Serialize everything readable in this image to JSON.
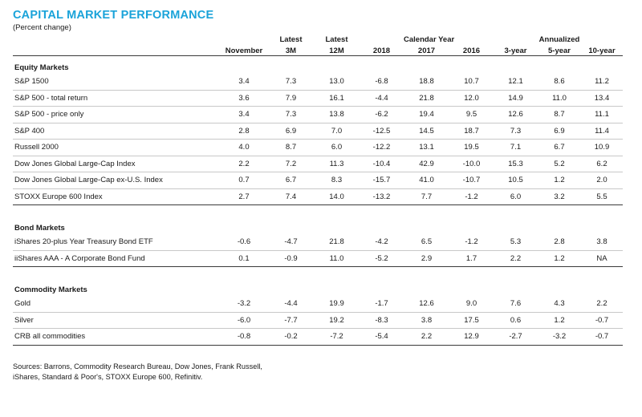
{
  "title": "CAPITAL MARKET PERFORMANCE",
  "subtitle": "(Percent change)",
  "header": {
    "top": [
      "",
      "",
      "Latest",
      "Latest",
      "",
      "Calendar Year",
      "",
      "",
      "Annualized",
      ""
    ],
    "bottom": [
      "November",
      "3M",
      "12M",
      "2018",
      "2017",
      "2016",
      "3-year",
      "5-year",
      "10-year"
    ]
  },
  "sections": [
    {
      "name": "Equity Markets",
      "rows": [
        {
          "label": "S&P 1500",
          "values": [
            "3.4",
            "7.3",
            "13.0",
            "-6.8",
            "18.8",
            "10.7",
            "12.1",
            "8.6",
            "11.2"
          ]
        },
        {
          "label": "S&P 500  - total return",
          "values": [
            "3.6",
            "7.9",
            "16.1",
            "-4.4",
            "21.8",
            "12.0",
            "14.9",
            "11.0",
            "13.4"
          ]
        },
        {
          "label": "S&P 500  - price only",
          "values": [
            "3.4",
            "7.3",
            "13.8",
            "-6.2",
            "19.4",
            "9.5",
            "12.6",
            "8.7",
            "11.1"
          ]
        },
        {
          "label": "S&P 400",
          "values": [
            "2.8",
            "6.9",
            "7.0",
            "-12.5",
            "14.5",
            "18.7",
            "7.3",
            "6.9",
            "11.4"
          ]
        },
        {
          "label": "Russell 2000",
          "values": [
            "4.0",
            "8.7",
            "6.0",
            "-12.2",
            "13.1",
            "19.5",
            "7.1",
            "6.7",
            "10.9"
          ]
        },
        {
          "label": "Dow Jones Global Large-Cap Index",
          "values": [
            "2.2",
            "7.2",
            "11.3",
            "-10.4",
            "42.9",
            "-10.0",
            "15.3",
            "5.2",
            "6.2"
          ]
        },
        {
          "label": "Dow Jones Global Large-Cap ex-U.S. Index",
          "values": [
            "0.7",
            "6.7",
            "8.3",
            "-15.7",
            "41.0",
            "-10.7",
            "10.5",
            "1.2",
            "2.0"
          ]
        },
        {
          "label": "STOXX Europe 600 Index",
          "values": [
            "2.7",
            "7.4",
            "14.0",
            "-13.2",
            "7.7",
            "-1.2",
            "6.0",
            "3.2",
            "5.5"
          ]
        }
      ]
    },
    {
      "name": "Bond Markets",
      "rows": [
        {
          "label": "iShares 20-plus Year Treasury Bond ETF",
          "values": [
            "-0.6",
            "-4.7",
            "21.8",
            "-4.2",
            "6.5",
            "-1.2",
            "5.3",
            "2.8",
            "3.8"
          ]
        },
        {
          "label": "iiShares AAA - A Corporate Bond Fund",
          "values": [
            "0.1",
            "-0.9",
            "11.0",
            "-5.2",
            "2.9",
            "1.7",
            "2.2",
            "1.2",
            "NA"
          ]
        }
      ]
    },
    {
      "name": "Commodity Markets",
      "rows": [
        {
          "label": "Gold",
          "values": [
            "-3.2",
            "-4.4",
            "19.9",
            "-1.7",
            "12.6",
            "9.0",
            "7.6",
            "4.3",
            "2.2"
          ]
        },
        {
          "label": "Silver",
          "values": [
            "-6.0",
            "-7.7",
            "19.2",
            "-8.3",
            "3.8",
            "17.5",
            "0.6",
            "1.2",
            "-0.7"
          ]
        },
        {
          "label": "CRB all commodities",
          "values": [
            "-0.8",
            "-0.2",
            "-7.2",
            "-5.4",
            "2.2",
            "12.9",
            "-2.7",
            "-3.2",
            "-0.7"
          ]
        }
      ]
    }
  ],
  "sources": [
    "Sources: Barrons, Commodity Research Bureau, Dow Jones, Frank Russell,",
    "iShares, Standard & Poor's, STOXX Europe 600, Refinitiv."
  ]
}
